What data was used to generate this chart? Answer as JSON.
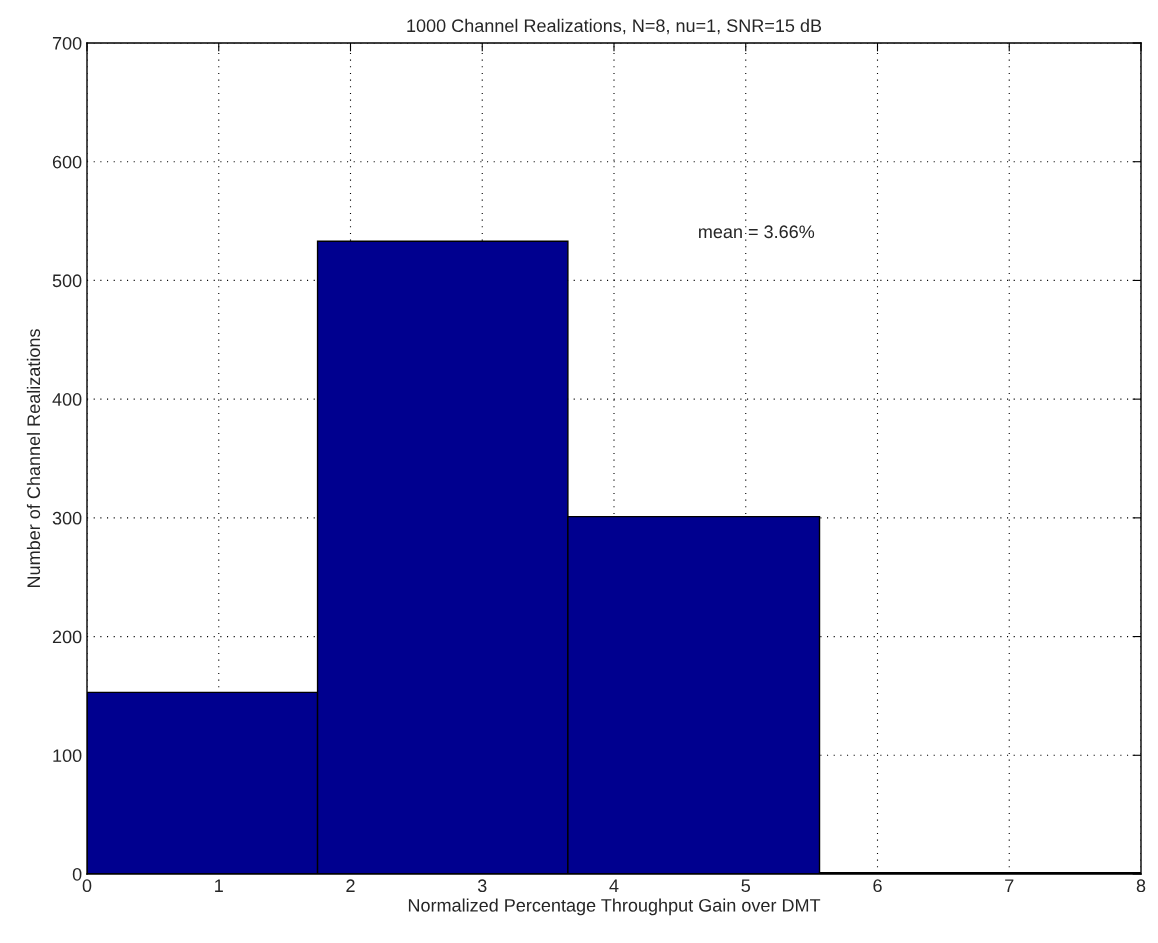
{
  "chart_data": {
    "type": "histogram",
    "title": "1000 Channel Realizations, N=8, nu=1, SNR=15 dB",
    "xlabel": "Normalized Percentage Throughput Gain over DMT",
    "ylabel": "Number of Channel Realizations",
    "bins": [
      0,
      1.75,
      3.65,
      5.56,
      8
    ],
    "values": [
      153,
      533,
      301,
      1
    ],
    "color": "#00008f",
    "xlim": [
      0,
      8
    ],
    "xticks": [
      0,
      1,
      2,
      3,
      4,
      5,
      6,
      7,
      8
    ],
    "ylim": [
      0,
      700
    ],
    "yticks": [
      0,
      100,
      200,
      300,
      400,
      500,
      600,
      700
    ],
    "grid": true,
    "annotations": [
      "mean = 3.66%"
    ]
  }
}
